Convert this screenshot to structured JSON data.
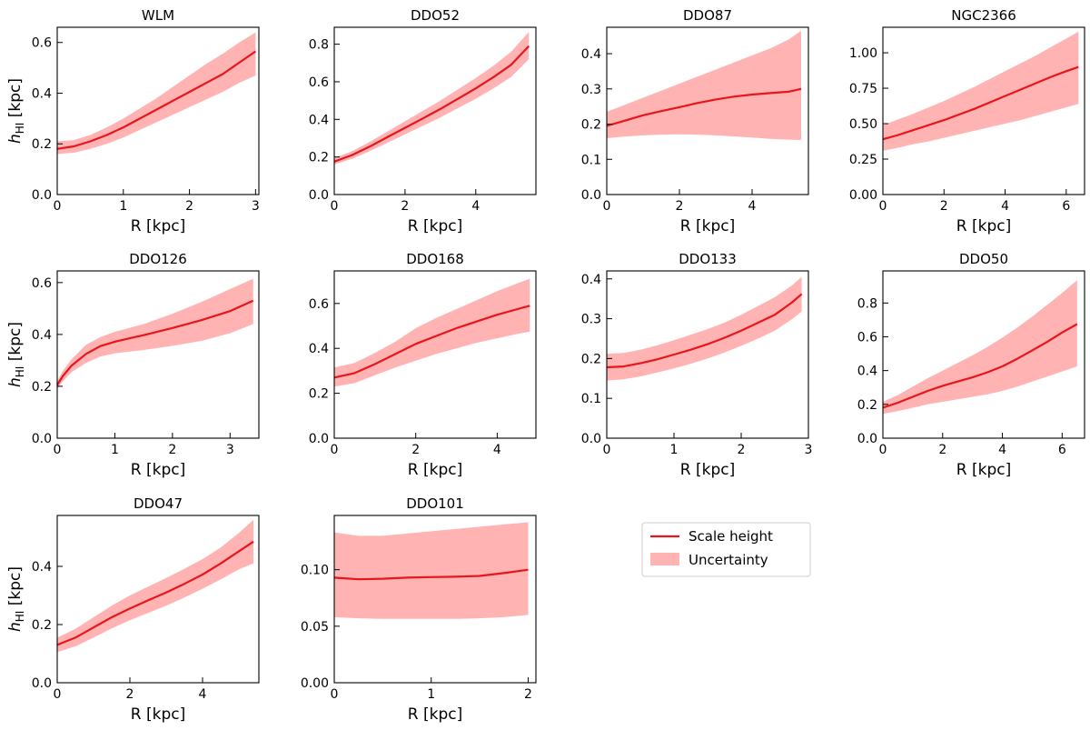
{
  "figure": {
    "legend": {
      "line_label": "Scale height",
      "band_label": "Uncertainty",
      "placement": "empty bottom-right grid cell"
    },
    "colors": {
      "line": "#e8151b",
      "band": "#ffb3b3",
      "axes": "#000000"
    }
  },
  "chart_data": [
    {
      "type": "line",
      "title": "WLM",
      "xlabel": "R [kpc]",
      "ylabel": "h_HI [kpc]",
      "ylabel_main": "h",
      "ylabel_sub": "HI",
      "ylabel_tail": " [kpc]",
      "show_ylabel": true,
      "xlim": [
        0,
        3.05
      ],
      "ylim": [
        0,
        0.66
      ],
      "xticks": [
        0,
        1,
        2,
        3
      ],
      "xticklabels": [
        "0",
        "1",
        "2",
        "3"
      ],
      "yticks": [
        0,
        0.2,
        0.4,
        0.6
      ],
      "yticklabels": [
        "0.0",
        "0.2",
        "0.4",
        "0.6"
      ],
      "x": [
        0,
        0.25,
        0.5,
        0.75,
        1,
        1.25,
        1.5,
        1.75,
        2,
        2.25,
        2.5,
        2.75,
        3
      ],
      "y": [
        0.18,
        0.19,
        0.21,
        0.235,
        0.265,
        0.3,
        0.335,
        0.37,
        0.405,
        0.44,
        0.475,
        0.52,
        0.565
      ],
      "lower": [
        0.16,
        0.165,
        0.18,
        0.2,
        0.225,
        0.255,
        0.285,
        0.315,
        0.345,
        0.375,
        0.405,
        0.44,
        0.47
      ],
      "upper": [
        0.21,
        0.215,
        0.235,
        0.265,
        0.3,
        0.34,
        0.38,
        0.425,
        0.47,
        0.515,
        0.555,
        0.6,
        0.64
      ]
    },
    {
      "type": "line",
      "title": "DDO52",
      "xlabel": "R [kpc]",
      "ylabel": "",
      "show_ylabel": false,
      "xlim": [
        0,
        5.7
      ],
      "ylim": [
        0,
        0.89
      ],
      "xticks": [
        0,
        2,
        4
      ],
      "xticklabels": [
        "0",
        "2",
        "4"
      ],
      "yticks": [
        0,
        0.2,
        0.4,
        0.6,
        0.8
      ],
      "yticklabels": [
        "0.0",
        "0.2",
        "0.4",
        "0.6",
        "0.8"
      ],
      "x": [
        0,
        0.5,
        1,
        1.5,
        2,
        2.5,
        3,
        3.5,
        4,
        4.5,
        5,
        5.5
      ],
      "y": [
        0.175,
        0.21,
        0.255,
        0.305,
        0.355,
        0.405,
        0.455,
        0.51,
        0.565,
        0.625,
        0.69,
        0.79
      ],
      "lower": [
        0.16,
        0.19,
        0.23,
        0.275,
        0.32,
        0.365,
        0.41,
        0.46,
        0.51,
        0.565,
        0.625,
        0.72
      ],
      "upper": [
        0.195,
        0.23,
        0.28,
        0.335,
        0.39,
        0.445,
        0.5,
        0.56,
        0.62,
        0.685,
        0.76,
        0.865
      ]
    },
    {
      "type": "line",
      "title": "DDO87",
      "xlabel": "R [kpc]",
      "ylabel": "",
      "show_ylabel": false,
      "xlim": [
        0,
        5.55
      ],
      "ylim": [
        0,
        0.475
      ],
      "xticks": [
        0,
        2,
        4
      ],
      "xticklabels": [
        "0",
        "2",
        "4"
      ],
      "yticks": [
        0,
        0.1,
        0.2,
        0.3,
        0.4
      ],
      "yticklabels": [
        "0.0",
        "0.1",
        "0.2",
        "0.3",
        "0.4"
      ],
      "x": [
        0,
        0.5,
        1,
        1.5,
        2,
        2.5,
        3,
        3.5,
        4,
        4.5,
        5,
        5.35
      ],
      "y": [
        0.195,
        0.21,
        0.225,
        0.237,
        0.248,
        0.26,
        0.27,
        0.278,
        0.284,
        0.288,
        0.292,
        0.3
      ],
      "lower": [
        0.16,
        0.165,
        0.168,
        0.17,
        0.171,
        0.17,
        0.168,
        0.165,
        0.162,
        0.158,
        0.156,
        0.155
      ],
      "upper": [
        0.235,
        0.255,
        0.275,
        0.295,
        0.315,
        0.335,
        0.355,
        0.375,
        0.395,
        0.415,
        0.44,
        0.465
      ]
    },
    {
      "type": "line",
      "title": "NGC2366",
      "xlabel": "R [kpc]",
      "ylabel": "",
      "show_ylabel": false,
      "xlim": [
        0,
        6.6
      ],
      "ylim": [
        0,
        1.18
      ],
      "xticks": [
        0,
        2,
        4,
        6
      ],
      "xticklabels": [
        "0",
        "2",
        "4",
        "6"
      ],
      "yticks": [
        0,
        0.25,
        0.5,
        0.75,
        1.0
      ],
      "yticklabels": [
        "0.00",
        "0.25",
        "0.50",
        "0.75",
        "1.00"
      ],
      "x": [
        0,
        0.5,
        1,
        1.5,
        2,
        2.5,
        3,
        3.5,
        4,
        4.5,
        5,
        5.5,
        6,
        6.4
      ],
      "y": [
        0.39,
        0.42,
        0.455,
        0.49,
        0.525,
        0.565,
        0.605,
        0.65,
        0.695,
        0.74,
        0.785,
        0.83,
        0.87,
        0.9
      ],
      "lower": [
        0.31,
        0.33,
        0.355,
        0.375,
        0.4,
        0.425,
        0.45,
        0.475,
        0.5,
        0.525,
        0.555,
        0.585,
        0.615,
        0.64
      ],
      "upper": [
        0.49,
        0.53,
        0.57,
        0.615,
        0.66,
        0.71,
        0.76,
        0.815,
        0.87,
        0.925,
        0.98,
        1.04,
        1.1,
        1.15
      ]
    },
    {
      "type": "line",
      "title": "DDO126",
      "xlabel": "R [kpc]",
      "ylabel": "h_HI [kpc]",
      "ylabel_main": "h",
      "ylabel_sub": "HI",
      "ylabel_tail": " [kpc]",
      "show_ylabel": true,
      "xlim": [
        0,
        3.5
      ],
      "ylim": [
        0,
        0.645
      ],
      "xticks": [
        0,
        1,
        2,
        3
      ],
      "xticklabels": [
        "0",
        "1",
        "2",
        "3"
      ],
      "yticks": [
        0,
        0.2,
        0.4,
        0.6
      ],
      "yticklabels": [
        "0.0",
        "0.2",
        "0.4",
        "0.6"
      ],
      "x": [
        0,
        0.1,
        0.25,
        0.5,
        0.75,
        1,
        1.25,
        1.5,
        2,
        2.5,
        3,
        3.4
      ],
      "y": [
        0.205,
        0.24,
        0.28,
        0.325,
        0.355,
        0.372,
        0.385,
        0.397,
        0.425,
        0.455,
        0.49,
        0.53
      ],
      "lower": [
        0.19,
        0.22,
        0.255,
        0.29,
        0.315,
        0.327,
        0.334,
        0.34,
        0.356,
        0.375,
        0.405,
        0.44
      ],
      "upper": [
        0.22,
        0.26,
        0.305,
        0.36,
        0.39,
        0.41,
        0.425,
        0.44,
        0.48,
        0.525,
        0.575,
        0.615
      ]
    },
    {
      "type": "line",
      "title": "DDO168",
      "xlabel": "R [kpc]",
      "ylabel": "",
      "show_ylabel": false,
      "xlim": [
        0,
        4.95
      ],
      "ylim": [
        0,
        0.745
      ],
      "xticks": [
        0,
        2,
        4
      ],
      "xticklabels": [
        "0",
        "2",
        "4"
      ],
      "yticks": [
        0,
        0.2,
        0.4,
        0.6
      ],
      "yticklabels": [
        "0.0",
        "0.2",
        "0.4",
        "0.6"
      ],
      "x": [
        0,
        0.5,
        1,
        1.5,
        2,
        2.5,
        3,
        3.5,
        4,
        4.5,
        4.8
      ],
      "y": [
        0.27,
        0.29,
        0.33,
        0.375,
        0.42,
        0.455,
        0.49,
        0.52,
        0.55,
        0.575,
        0.59
      ],
      "lower": [
        0.23,
        0.245,
        0.28,
        0.315,
        0.345,
        0.375,
        0.4,
        0.425,
        0.445,
        0.465,
        0.475
      ],
      "upper": [
        0.315,
        0.335,
        0.38,
        0.43,
        0.49,
        0.535,
        0.575,
        0.615,
        0.655,
        0.69,
        0.71
      ]
    },
    {
      "type": "line",
      "title": "DDO133",
      "xlabel": "R [kpc]",
      "ylabel": "",
      "show_ylabel": false,
      "xlim": [
        0,
        3.0
      ],
      "ylim": [
        0,
        0.42
      ],
      "xticks": [
        0,
        1,
        2,
        3
      ],
      "xticklabels": [
        "0",
        "1",
        "2",
        "3"
      ],
      "yticks": [
        0,
        0.1,
        0.2,
        0.3,
        0.4
      ],
      "yticklabels": [
        "0.0",
        "0.1",
        "0.2",
        "0.3",
        "0.4"
      ],
      "x": [
        0,
        0.25,
        0.5,
        0.75,
        1,
        1.25,
        1.5,
        1.75,
        2,
        2.25,
        2.5,
        2.75,
        2.9
      ],
      "y": [
        0.178,
        0.18,
        0.188,
        0.198,
        0.21,
        0.222,
        0.236,
        0.252,
        0.27,
        0.29,
        0.31,
        0.34,
        0.362
      ],
      "lower": [
        0.145,
        0.148,
        0.155,
        0.165,
        0.175,
        0.187,
        0.2,
        0.215,
        0.232,
        0.25,
        0.27,
        0.298,
        0.318
      ],
      "upper": [
        0.212,
        0.214,
        0.222,
        0.233,
        0.246,
        0.26,
        0.274,
        0.29,
        0.31,
        0.332,
        0.354,
        0.383,
        0.405
      ]
    },
    {
      "type": "line",
      "title": "DDO50",
      "xlabel": "R [kpc]",
      "ylabel": "",
      "show_ylabel": false,
      "xlim": [
        0,
        6.75
      ],
      "ylim": [
        0,
        0.99
      ],
      "xticks": [
        0,
        2,
        4,
        6
      ],
      "xticklabels": [
        "0",
        "2",
        "4",
        "6"
      ],
      "yticks": [
        0,
        0.2,
        0.4,
        0.6,
        0.8
      ],
      "yticklabels": [
        "0.0",
        "0.2",
        "0.4",
        "0.6",
        "0.8"
      ],
      "x": [
        0,
        0.5,
        1,
        1.5,
        2,
        2.5,
        3,
        3.5,
        4,
        4.5,
        5,
        5.5,
        6,
        6.5
      ],
      "y": [
        0.18,
        0.21,
        0.245,
        0.28,
        0.31,
        0.335,
        0.36,
        0.39,
        0.425,
        0.47,
        0.52,
        0.57,
        0.625,
        0.675
      ],
      "lower": [
        0.145,
        0.16,
        0.18,
        0.2,
        0.215,
        0.23,
        0.245,
        0.26,
        0.28,
        0.305,
        0.335,
        0.365,
        0.395,
        0.425
      ],
      "upper": [
        0.215,
        0.255,
        0.305,
        0.355,
        0.4,
        0.445,
        0.49,
        0.54,
        0.595,
        0.655,
        0.72,
        0.79,
        0.86,
        0.935
      ]
    },
    {
      "type": "line",
      "title": "DDO47",
      "xlabel": "R [kpc]",
      "ylabel": "h_HI [kpc]",
      "ylabel_main": "h",
      "ylabel_sub": "HI",
      "ylabel_tail": " [kpc]",
      "show_ylabel": true,
      "xlim": [
        0,
        5.55
      ],
      "ylim": [
        0,
        0.575
      ],
      "xticks": [
        0,
        2,
        4
      ],
      "xticklabels": [
        "0",
        "2",
        "4"
      ],
      "yticks": [
        0,
        0.2,
        0.4
      ],
      "yticklabels": [
        "0.0",
        "0.2",
        "0.4"
      ],
      "x": [
        0,
        0.5,
        1,
        1.5,
        2,
        2.5,
        3,
        3.5,
        4,
        4.5,
        5,
        5.4
      ],
      "y": [
        0.13,
        0.155,
        0.19,
        0.225,
        0.255,
        0.283,
        0.31,
        0.34,
        0.372,
        0.41,
        0.452,
        0.485
      ],
      "lower": [
        0.105,
        0.125,
        0.155,
        0.187,
        0.215,
        0.24,
        0.265,
        0.293,
        0.323,
        0.355,
        0.39,
        0.41
      ],
      "upper": [
        0.155,
        0.185,
        0.225,
        0.265,
        0.3,
        0.33,
        0.36,
        0.392,
        0.425,
        0.465,
        0.515,
        0.56
      ]
    },
    {
      "type": "line",
      "title": "DDO101",
      "xlabel": "R [kpc]",
      "ylabel": "",
      "show_ylabel": false,
      "xlim": [
        0,
        2.08
      ],
      "ylim": [
        0,
        0.148
      ],
      "xticks": [
        0,
        1,
        2
      ],
      "xticklabels": [
        "0",
        "1",
        "2"
      ],
      "yticks": [
        0,
        0.05,
        0.1
      ],
      "yticklabels": [
        "0.00",
        "0.05",
        "0.10"
      ],
      "x": [
        0,
        0.25,
        0.5,
        0.75,
        1,
        1.25,
        1.5,
        1.75,
        2
      ],
      "y": [
        0.093,
        0.0915,
        0.092,
        0.093,
        0.0935,
        0.0938,
        0.0945,
        0.097,
        0.1
      ],
      "lower": [
        0.058,
        0.057,
        0.0565,
        0.0565,
        0.0565,
        0.0565,
        0.057,
        0.058,
        0.06
      ],
      "upper": [
        0.133,
        0.13,
        0.13,
        0.132,
        0.134,
        0.136,
        0.138,
        0.14,
        0.142
      ]
    }
  ]
}
